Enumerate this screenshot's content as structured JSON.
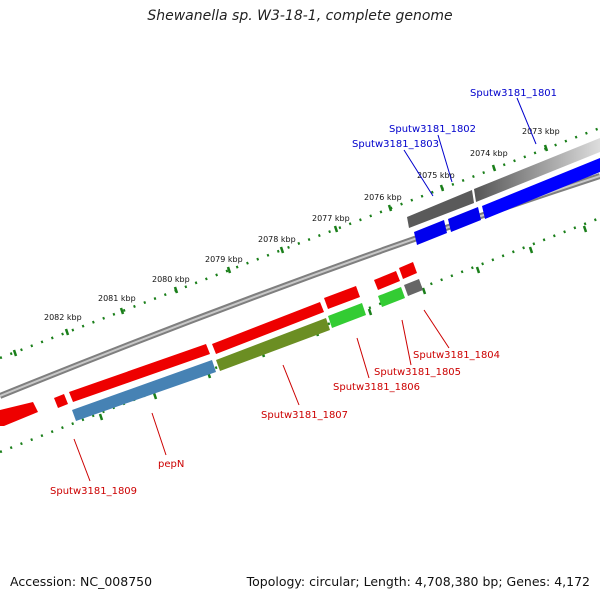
{
  "title": "Shewanella sp. W3-18-1, complete genome",
  "footer": {
    "accession": "Accession: NC_008750",
    "summary": "Topology: circular; Length: 4,708,380 bp; Genes: 4,172"
  },
  "scale": {
    "unit": "kbp",
    "ticks": [
      "2082 kbp",
      "2081 kbp",
      "2080 kbp",
      "2079 kbp",
      "2078 kbp",
      "2077 kbp",
      "2076 kbp",
      "2075 kbp",
      "2074 kbp",
      "2073 kbp"
    ]
  },
  "genes": {
    "forward": [
      {
        "name": "Sputw3181_1801",
        "color": "#0000ff"
      },
      {
        "name": "Sputw3181_1802",
        "color": "#0000cc"
      },
      {
        "name": "Sputw3181_1803",
        "color": "#0000cc"
      }
    ],
    "reverse": [
      {
        "name": "Sputw3181_1804",
        "color": "#cc0000"
      },
      {
        "name": "Sputw3181_1805",
        "color": "#cc0000"
      },
      {
        "name": "Sputw3181_1806",
        "color": "#cc0000"
      },
      {
        "name": "Sputw3181_1807",
        "color": "#cc0000"
      },
      {
        "name": "pepN",
        "color": "#cc0000"
      },
      {
        "name": "Sputw3181_1809",
        "color": "#cc0000"
      }
    ]
  },
  "colors": {
    "backbone": "#888888",
    "tick": "#1a7f1a",
    "cds_red": "#ff0000",
    "cds_green": "#33cc33",
    "cds_olive": "#6b8e23",
    "cds_steel": "#4682b4",
    "cds_blue": "#0000ff",
    "cds_gray": "#555555"
  }
}
